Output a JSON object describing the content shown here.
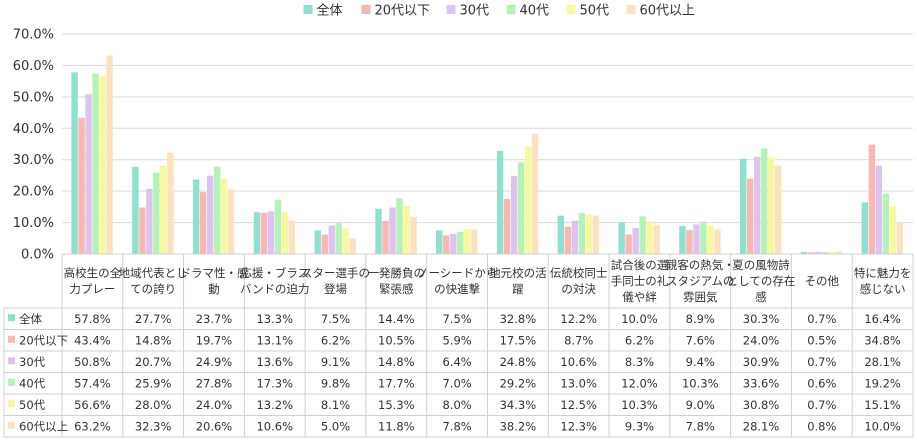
{
  "chart_data": {
    "type": "bar",
    "yticks": [
      "0.0%",
      "10.0%",
      "20.0%",
      "30.0%",
      "40.0%",
      "50.0%",
      "60.0%",
      "70.0%"
    ],
    "ylim": [
      0,
      70
    ],
    "grid": true,
    "legend_position": "top",
    "categories": [
      [
        "高校生の全",
        "力プレー"
      ],
      [
        "地域代表とし",
        "ての誇り"
      ],
      [
        "ドラマ性・感",
        "動"
      ],
      [
        "応援・ブラス",
        "バンドの迫力"
      ],
      [
        "スター選手の",
        "登場"
      ],
      [
        "一発勝負の",
        "緊張感"
      ],
      [
        "ノーシードから",
        "の快進撃"
      ],
      [
        "地元校の活",
        "躍"
      ],
      [
        "伝統校同士",
        "の対決"
      ],
      [
        "試合後の選",
        "手同士の礼",
        "儀や絆"
      ],
      [
        "観客の熱気・",
        "スタジアムの",
        "雰囲気"
      ],
      [
        "夏の風物詩",
        "としての存在",
        "感"
      ],
      [
        "その他"
      ],
      [
        "特に魅力を",
        "感じない"
      ]
    ],
    "series": [
      {
        "name": "全体",
        "color": "#8fe0cf",
        "values": [
          57.8,
          27.7,
          23.7,
          13.3,
          7.5,
          14.4,
          7.5,
          32.8,
          12.2,
          10.0,
          8.9,
          30.3,
          0.7,
          16.4
        ],
        "labels": [
          "57.8%",
          "27.7%",
          "23.7%",
          "13.3%",
          "7.5%",
          "14.4%",
          "7.5%",
          "32.8%",
          "12.2%",
          "10.0%",
          "8.9%",
          "30.3%",
          "0.7%",
          "16.4%"
        ]
      },
      {
        "name": "20代以下",
        "color": "#f8b7b3",
        "values": [
          43.4,
          14.8,
          19.7,
          13.1,
          6.2,
          10.5,
          5.9,
          17.5,
          8.7,
          6.2,
          7.6,
          24.0,
          0.5,
          34.8
        ],
        "labels": [
          "43.4%",
          "14.8%",
          "19.7%",
          "13.1%",
          "6.2%",
          "10.5%",
          "5.9%",
          "17.5%",
          "8.7%",
          "6.2%",
          "7.6%",
          "24.0%",
          "0.5%",
          "34.8%"
        ]
      },
      {
        "name": "30代",
        "color": "#dcc3f0",
        "values": [
          50.8,
          20.7,
          24.9,
          13.6,
          9.1,
          14.8,
          6.4,
          24.8,
          10.6,
          8.3,
          9.4,
          30.9,
          0.7,
          28.1
        ],
        "labels": [
          "50.8%",
          "20.7%",
          "24.9%",
          "13.6%",
          "9.1%",
          "14.8%",
          "6.4%",
          "24.8%",
          "10.6%",
          "8.3%",
          "9.4%",
          "30.9%",
          "0.7%",
          "28.1%"
        ]
      },
      {
        "name": "40代",
        "color": "#b5f2b5",
        "values": [
          57.4,
          25.9,
          27.8,
          17.3,
          9.8,
          17.7,
          7.0,
          29.2,
          13.0,
          12.0,
          10.3,
          33.6,
          0.6,
          19.2
        ],
        "labels": [
          "57.4%",
          "25.9%",
          "27.8%",
          "17.3%",
          "9.8%",
          "17.7%",
          "7.0%",
          "29.2%",
          "13.0%",
          "12.0%",
          "10.3%",
          "33.6%",
          "0.6%",
          "19.2%"
        ]
      },
      {
        "name": "50代",
        "color": "#f7f7a0",
        "values": [
          56.6,
          28.0,
          24.0,
          13.2,
          8.1,
          15.3,
          8.0,
          34.3,
          12.5,
          10.3,
          9.0,
          30.8,
          0.7,
          15.1
        ],
        "labels": [
          "56.6%",
          "28.0%",
          "24.0%",
          "13.2%",
          "8.1%",
          "15.3%",
          "8.0%",
          "34.3%",
          "12.5%",
          "10.3%",
          "9.0%",
          "30.8%",
          "0.7%",
          "15.1%"
        ]
      },
      {
        "name": "60代以上",
        "color": "#fbe2bd",
        "values": [
          63.2,
          32.3,
          20.6,
          10.6,
          5.0,
          11.8,
          7.8,
          38.2,
          12.3,
          9.3,
          7.8,
          28.1,
          0.8,
          10.0
        ],
        "labels": [
          "63.2%",
          "32.3%",
          "20.6%",
          "10.6%",
          "5.0%",
          "11.8%",
          "7.8%",
          "38.2%",
          "12.3%",
          "9.3%",
          "7.8%",
          "28.1%",
          "0.8%",
          "10.0%"
        ]
      }
    ]
  }
}
